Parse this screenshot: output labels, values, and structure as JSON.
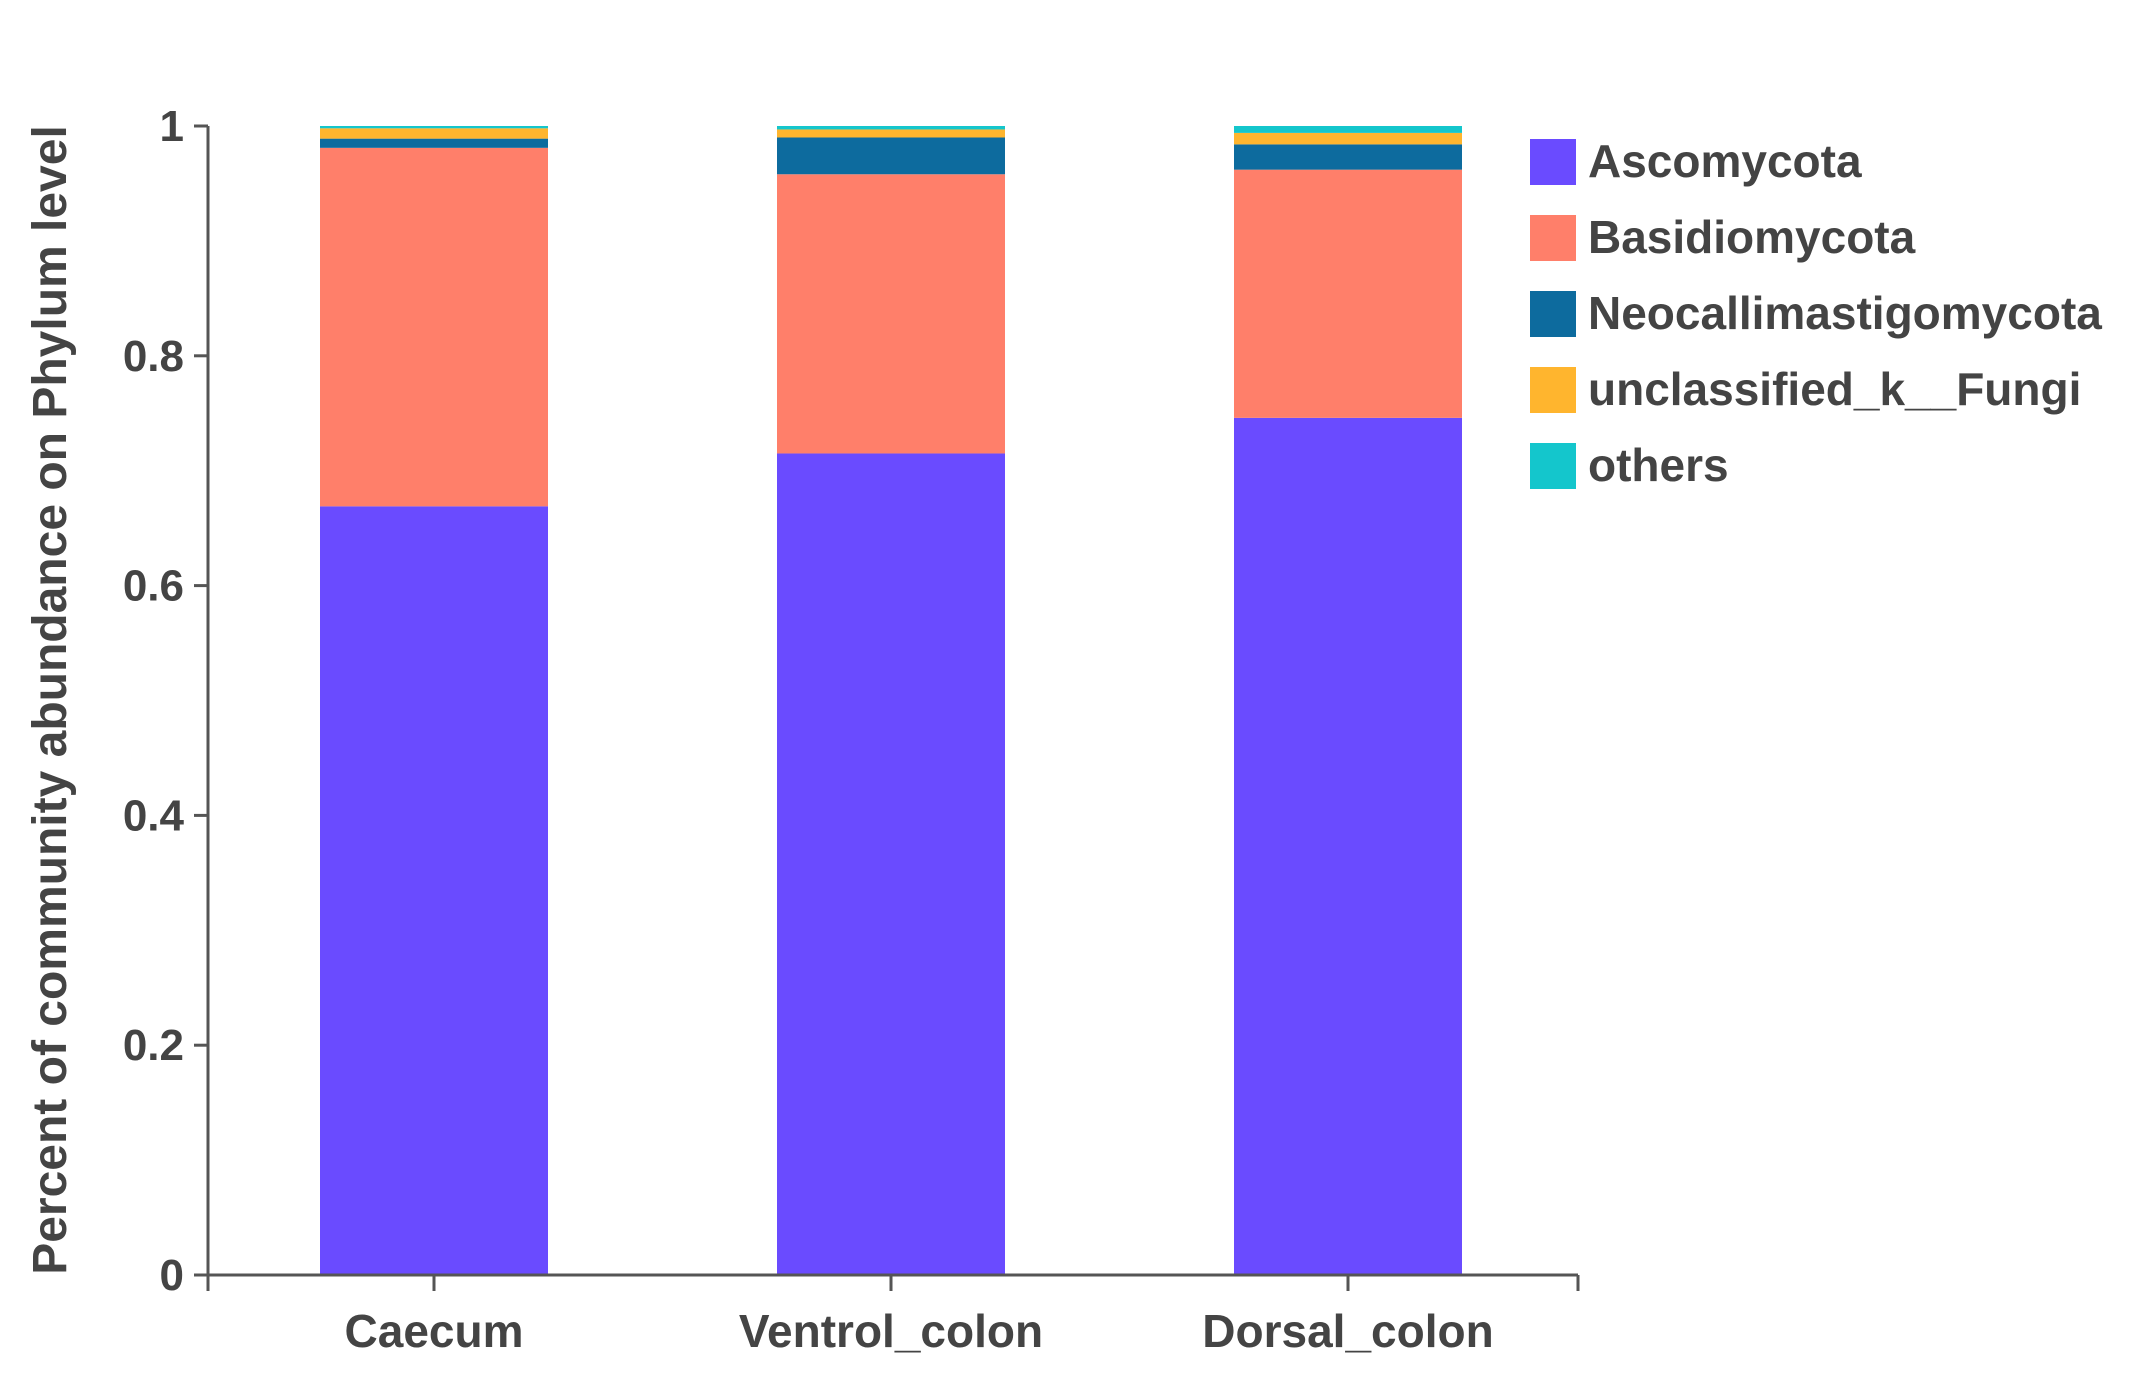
{
  "chart_data": {
    "type": "bar",
    "stacked": true,
    "title": "",
    "xlabel": "",
    "ylabel": "Percent of community abundance on Phylum level",
    "ylim": [
      0,
      1
    ],
    "yticks": [
      "0",
      "0.2",
      "0.4",
      "0.6",
      "0.8",
      "1"
    ],
    "categories": [
      "Caecum",
      "Ventrol_colon",
      "Dorsal_colon"
    ],
    "legend_position": "right",
    "grid": false,
    "series": [
      {
        "name": "Ascomycota",
        "color": "#6a4bff",
        "values": [
          0.669,
          0.715,
          0.746
        ]
      },
      {
        "name": "Basidiomycota",
        "color": "#ff7f6a",
        "values": [
          0.312,
          0.243,
          0.216
        ]
      },
      {
        "name": "Neocallimastigomycota",
        "color": "#0d6b9e",
        "values": [
          0.008,
          0.032,
          0.022
        ]
      },
      {
        "name": "unclassified_k__Fungi",
        "color": "#ffb52e",
        "values": [
          0.009,
          0.007,
          0.01
        ]
      },
      {
        "name": "others",
        "color": "#14c6cc",
        "values": [
          0.002,
          0.003,
          0.006
        ]
      }
    ]
  }
}
